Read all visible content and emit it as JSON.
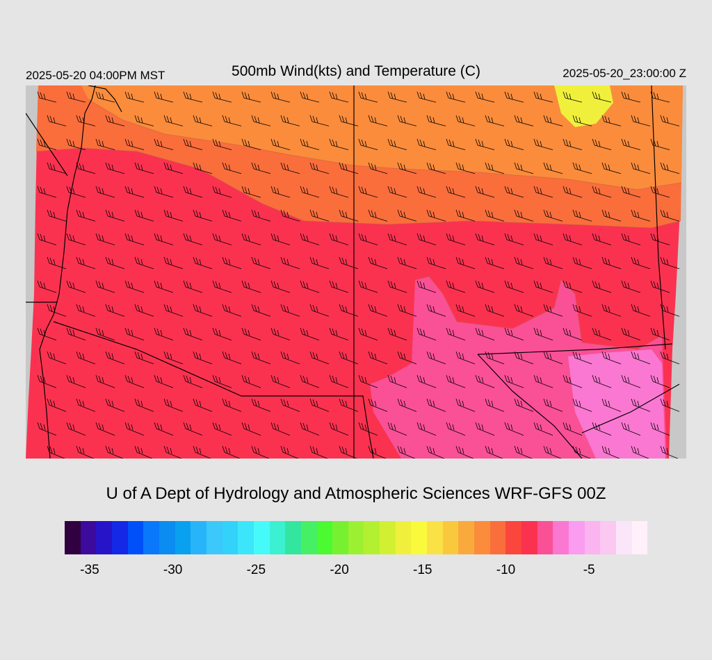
{
  "header": {
    "local_time": "2025-05-20 04:00PM MST",
    "title": "500mb Wind(kts) and Temperature (C)",
    "valid_time": "2025-05-20_23:00:00 Z"
  },
  "footer": {
    "credit": "U of A Dept of Hydrology and Atmospheric Sciences WRF-GFS 00Z"
  },
  "colorbar": {
    "colors": [
      "#300040",
      "#3c0a9c",
      "#2814c8",
      "#1428e6",
      "#0050fa",
      "#0a78fa",
      "#0a8cf0",
      "#0aa0f0",
      "#28b4f8",
      "#3cc8fa",
      "#32d2fa",
      "#3ce6fa",
      "#46fafa",
      "#3cf0d2",
      "#32e6a0",
      "#46f064",
      "#4cfa32",
      "#78f032",
      "#9cf032",
      "#b4f032",
      "#d2f032",
      "#f0f03c",
      "#fafa3c",
      "#fae146",
      "#fac83c",
      "#faaa3c",
      "#fa8c3c",
      "#fa6e3c",
      "#fa463c",
      "#fa3250",
      "#fa5096",
      "#fa78d2",
      "#fa9cf0",
      "#fab4f0",
      "#fac8f0",
      "#fae6f8",
      "#fff0fa"
    ],
    "labels": [
      "-35",
      "-30",
      "-25",
      "-20",
      "-15",
      "-10",
      "-5"
    ],
    "label_values": [
      -35,
      -30,
      -25,
      -20,
      -15,
      -10,
      -5
    ],
    "min": -36.5,
    "max": -1.5
  },
  "map_colors": {
    "outside": "#c8c8c8",
    "north_band": "#fa8c3c",
    "north_mid": "#fa6e3c",
    "yellow_spot": "#f0f03c",
    "main": "#fa3250",
    "south_pink": "#fa5096",
    "south_light": "#fa78d2",
    "border": "#000000",
    "contour": "#c06040",
    "barb": "#000000"
  }
}
